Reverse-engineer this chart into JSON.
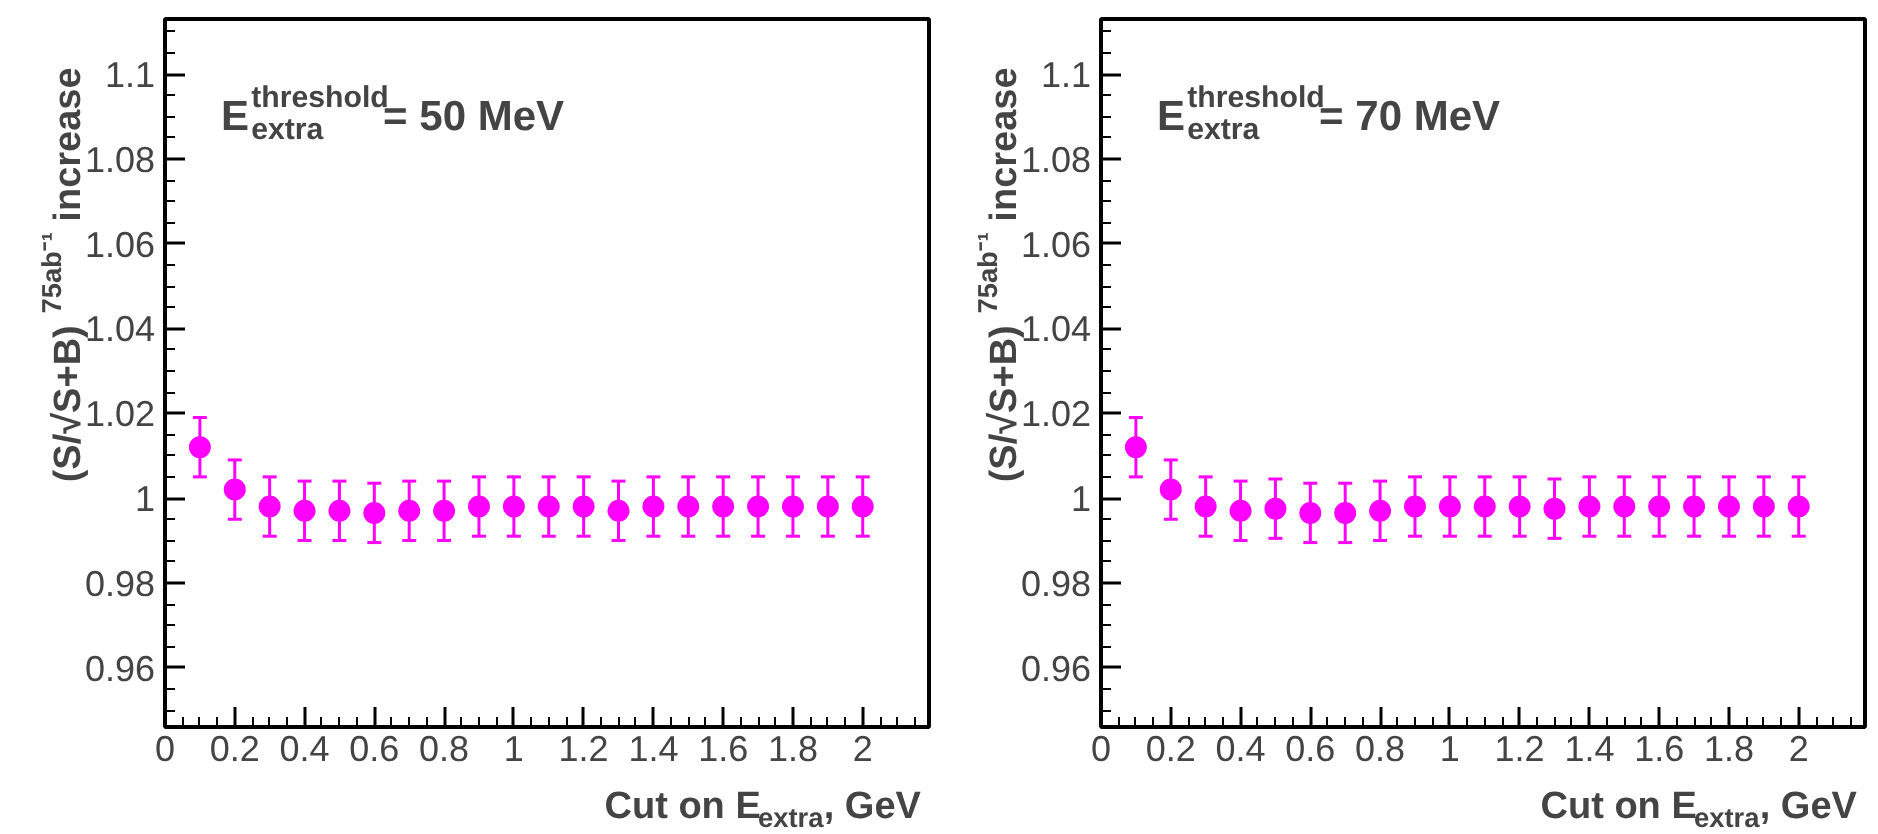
{
  "chart_data": [
    {
      "type": "scatter",
      "xlabel": "Cut on E$_{extra}$, GeV",
      "ylabel": "(S/√S+B)$^{75ab⁻¹}$ increase",
      "annotations": [
        "E$^{threshold}$$_{extra}$ = 50 MeV"
      ],
      "marker": "circle",
      "grid": false,
      "x": [
        0.1,
        0.2,
        0.3,
        0.4,
        0.5,
        0.6,
        0.7,
        0.8,
        0.9,
        1.0,
        1.1,
        1.2,
        1.3,
        1.4,
        1.5,
        1.6,
        1.7,
        1.8,
        1.9,
        2.0
      ],
      "series": [
        {
          "color": "#ff00ff",
          "values": [
            1.012,
            1.002,
            0.998,
            0.997,
            0.997,
            0.9965,
            0.997,
            0.997,
            0.998,
            0.998,
            0.998,
            0.998,
            0.997,
            0.998,
            0.998,
            0.998,
            0.998,
            0.998,
            0.998,
            0.998
          ],
          "errors": [
            0.007,
            0.007,
            0.007,
            0.007,
            0.007,
            0.007,
            0.007,
            0.007,
            0.007,
            0.007,
            0.007,
            0.007,
            0.007,
            0.007,
            0.007,
            0.007,
            0.007,
            0.007,
            0.007,
            0.007
          ]
        }
      ],
      "xlim": [
        0,
        2.19
      ],
      "ylim": [
        0.946,
        1.113
      ],
      "xticks": [
        0,
        0.2,
        0.4,
        0.6,
        0.8,
        1,
        1.2,
        1.4,
        1.6,
        1.8,
        2
      ],
      "yticks": [
        0.96,
        0.98,
        1,
        1.02,
        1.04,
        1.06,
        1.08,
        1.1
      ]
    },
    {
      "type": "scatter",
      "xlabel": "Cut on E$_{extra}$, GeV",
      "ylabel": "(S/√S+B)$^{75ab⁻¹}$ increase",
      "annotations": [
        "E$^{threshold}$$_{extra}$ = 70 MeV"
      ],
      "marker": "circle",
      "grid": false,
      "x": [
        0.1,
        0.2,
        0.3,
        0.4,
        0.5,
        0.6,
        0.7,
        0.8,
        0.9,
        1.0,
        1.1,
        1.2,
        1.3,
        1.4,
        1.5,
        1.6,
        1.7,
        1.8,
        1.9,
        2.0
      ],
      "series": [
        {
          "color": "#ff00ff",
          "values": [
            1.012,
            1.002,
            0.998,
            0.997,
            0.9975,
            0.9965,
            0.9965,
            0.997,
            0.998,
            0.998,
            0.998,
            0.998,
            0.9975,
            0.998,
            0.998,
            0.998,
            0.998,
            0.998,
            0.998,
            0.998
          ],
          "errors": [
            0.007,
            0.007,
            0.007,
            0.007,
            0.007,
            0.007,
            0.007,
            0.007,
            0.007,
            0.007,
            0.007,
            0.007,
            0.007,
            0.007,
            0.007,
            0.007,
            0.007,
            0.007,
            0.007,
            0.007
          ]
        }
      ],
      "xlim": [
        0,
        2.19
      ],
      "ylim": [
        0.946,
        1.113
      ],
      "xticks": [
        0,
        0.2,
        0.4,
        0.6,
        0.8,
        1,
        1.2,
        1.4,
        1.6,
        1.8,
        2
      ],
      "yticks": [
        0.96,
        0.98,
        1,
        1.02,
        1.04,
        1.06,
        1.08,
        1.1
      ]
    }
  ]
}
